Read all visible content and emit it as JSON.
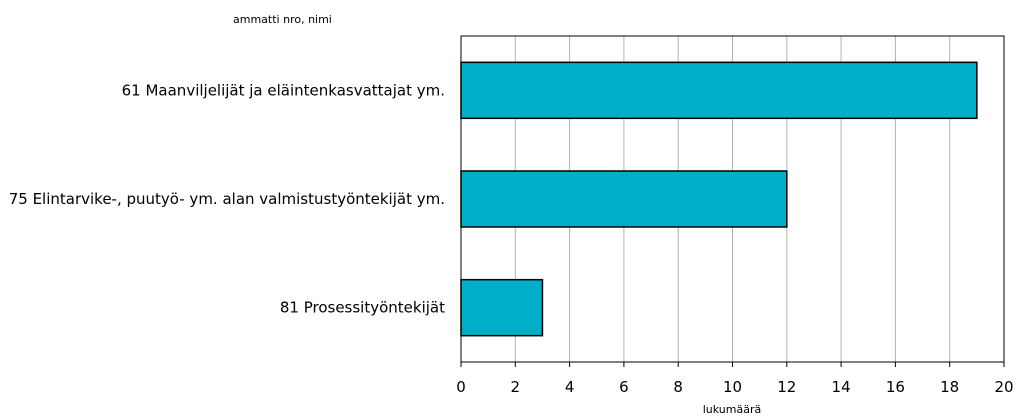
{
  "chart_data": {
    "type": "bar",
    "orientation": "horizontal",
    "title": "ammatti nro, nimi",
    "xlabel": "lukumäärä",
    "categories": [
      "61 Maanviljelijät ja eläintenkasvattajat ym.",
      "75 Elintarvike-, puutyö- ym. alan valmistustyöntekijät ym.",
      "81 Prosessityöntekijät"
    ],
    "values": [
      19,
      12,
      3
    ],
    "xlim": [
      0,
      20
    ],
    "xticks": [
      0,
      2,
      4,
      6,
      8,
      10,
      12,
      14,
      16,
      18,
      20
    ],
    "grid": "vertical",
    "bar_color": "#00aec7"
  }
}
